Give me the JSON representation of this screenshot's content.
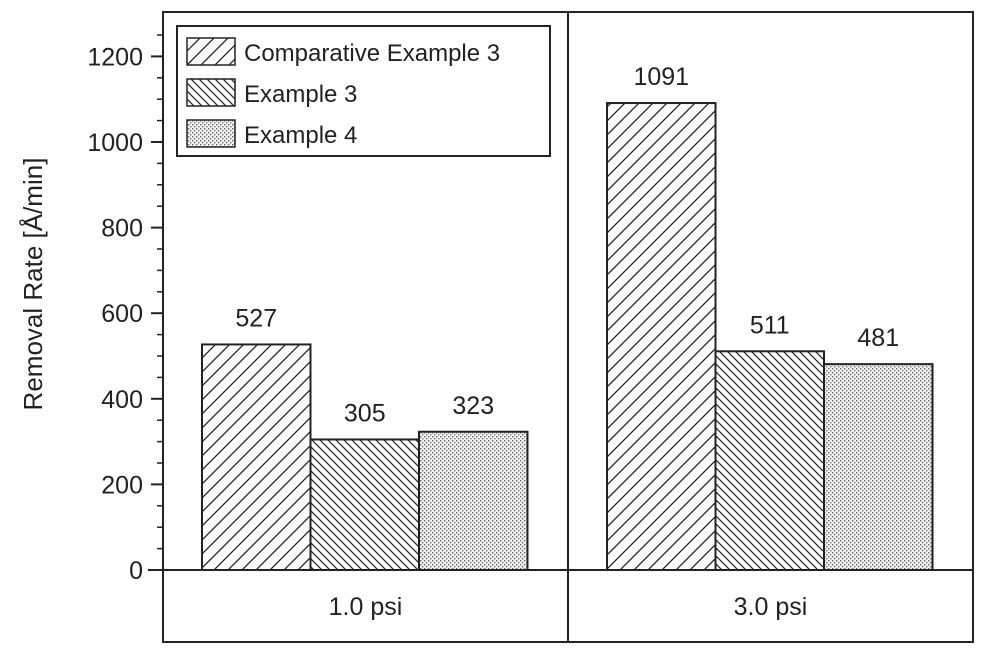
{
  "chart_data": {
    "type": "bar",
    "title": "",
    "xlabel": "",
    "ylabel": "Removal Rate [Å/min]",
    "ylim": [
      0,
      1300
    ],
    "yticks": [
      0,
      200,
      400,
      600,
      800,
      1000,
      1200
    ],
    "categories": [
      "1.0 psi",
      "3.0 psi"
    ],
    "series": [
      {
        "name": "Comparative Example 3",
        "pattern": "hatch-forward",
        "values": [
          527,
          1091
        ]
      },
      {
        "name": "Example 3",
        "pattern": "hatch-backward",
        "values": [
          305,
          511
        ]
      },
      {
        "name": "Example 4",
        "pattern": "dots",
        "values": [
          323,
          481
        ]
      }
    ],
    "data_labels": [
      [
        "527",
        "1091"
      ],
      [
        "305",
        "511"
      ],
      [
        "323",
        "481"
      ]
    ],
    "legend_position": "top-left",
    "grid": false,
    "colors": {
      "bar_stroke": "#222222",
      "background": "#ffffff"
    }
  }
}
